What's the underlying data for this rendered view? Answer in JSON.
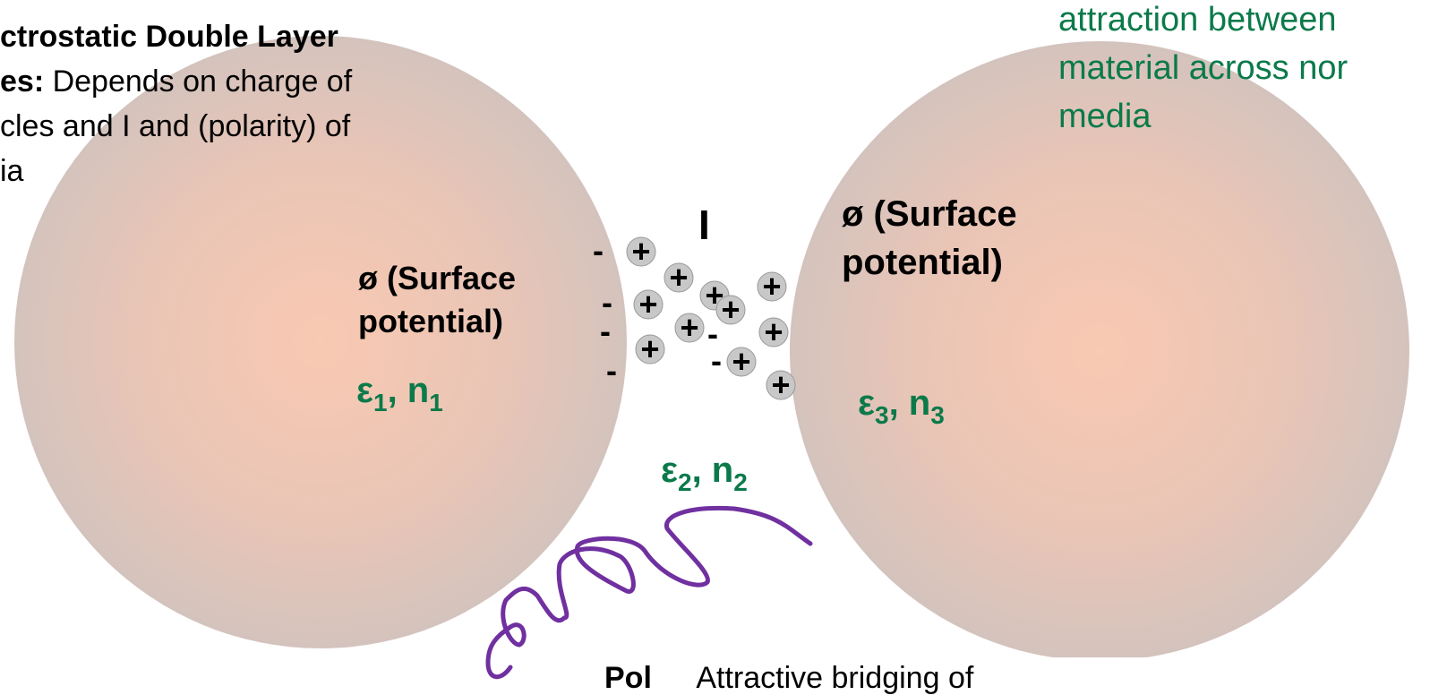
{
  "top_left_text": {
    "line1_bold": "ctrostatic Double Layer",
    "line2_bold": "es:",
    "line2": " Depends on charge of",
    "line3": "cles and I and (polarity) of",
    "line4": "ia"
  },
  "top_right_text": {
    "lines": [
      "attraction between",
      "material across nor",
      "media"
    ]
  },
  "left_particle": {
    "potential": [
      "ø (Surface",
      "potential)"
    ],
    "props": {
      "eps": "ε",
      "eps_sub": "1",
      "sep": ", ",
      "n": "n",
      "n_sub": "1"
    }
  },
  "right_particle": {
    "potential": [
      "ø (Surface",
      "potential)"
    ],
    "props": {
      "eps": "ε",
      "eps_sub": "3",
      "sep": ", ",
      "n": "n",
      "n_sub": "3"
    }
  },
  "medium": {
    "props": {
      "eps": "ε",
      "eps_sub": "2",
      "sep": ", ",
      "n": "n",
      "n_sub": "2"
    },
    "ionic_strength": "I"
  },
  "ions": [
    "-",
    "-",
    "-",
    "-",
    "-",
    "-",
    "+",
    "+",
    "+",
    "+",
    "+",
    "+",
    "+",
    "+",
    "+",
    "+",
    "+"
  ],
  "bottom_text": {
    "bold": "Pol",
    "text": "Attractive bridging of"
  }
}
